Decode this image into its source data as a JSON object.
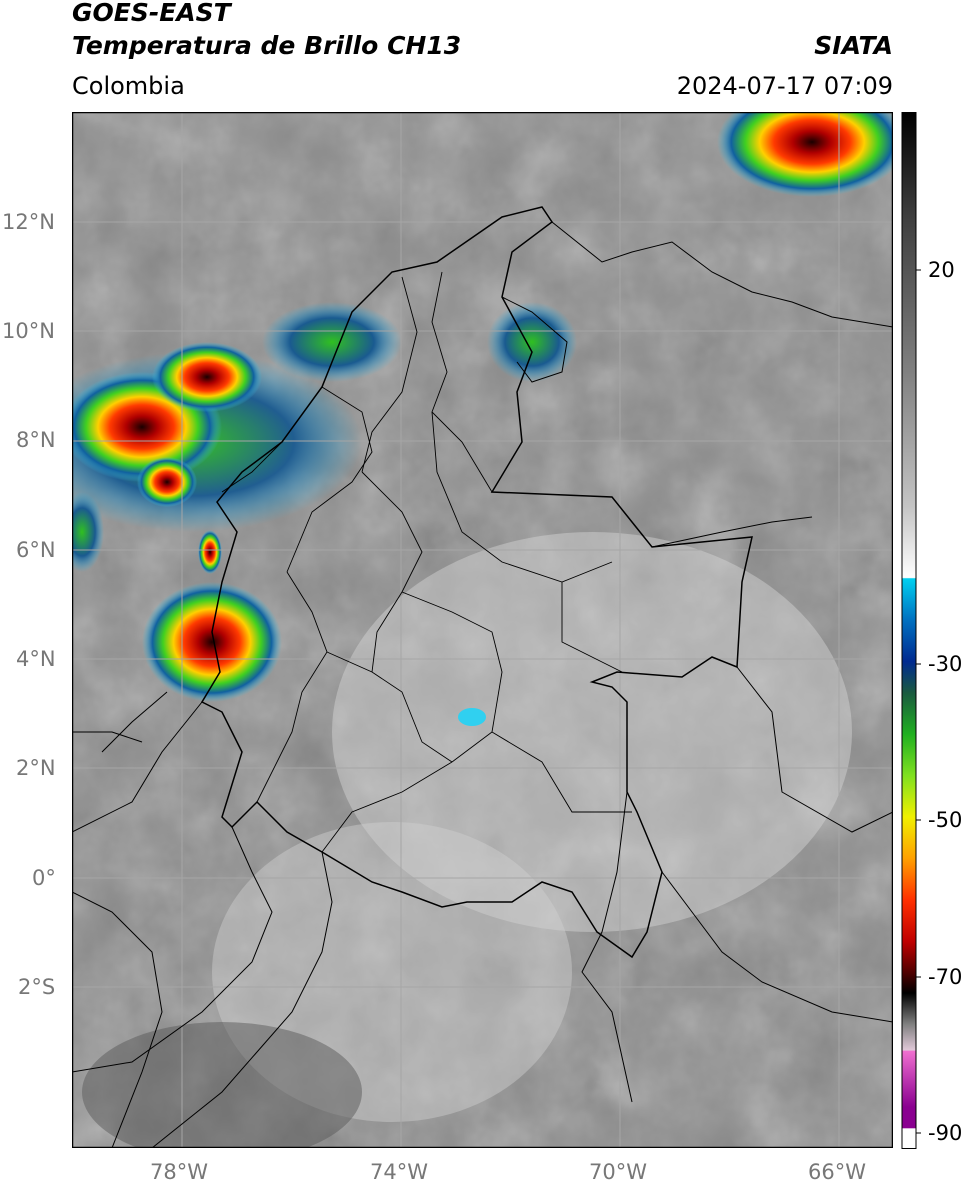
{
  "header": {
    "title_line1": "GOES-EAST",
    "title_line2": "Temperatura de Brillo CH13",
    "region": "Colombia",
    "brand": "SIATA",
    "datetime": "2024-07-17 07:09"
  },
  "map": {
    "lat_labels": [
      "12°N",
      "10°N",
      "8°N",
      "6°N",
      "4°N",
      "2°N",
      "0°",
      "2°S"
    ],
    "lon_labels": [
      "78°W",
      "74°W",
      "70°W",
      "66°W"
    ],
    "background_gray": "#8e8e8e",
    "grid_color": "#a8a8a8"
  },
  "colorbar": {
    "tick_labels": [
      "20",
      "-30",
      "-50",
      "-70",
      "-90"
    ],
    "colors": [
      "#000000",
      "#404040",
      "#808080",
      "#c0c0c0",
      "#ffffff",
      "#00c8e8",
      "#0050b0",
      "#002080",
      "#1a6040",
      "#20b020",
      "#60e020",
      "#e0e000",
      "#ffb000",
      "#ff5000",
      "#e00000",
      "#900000",
      "#300000",
      "#101010",
      "#909090",
      "#e060c0",
      "#900090",
      "#ffffff"
    ]
  }
}
